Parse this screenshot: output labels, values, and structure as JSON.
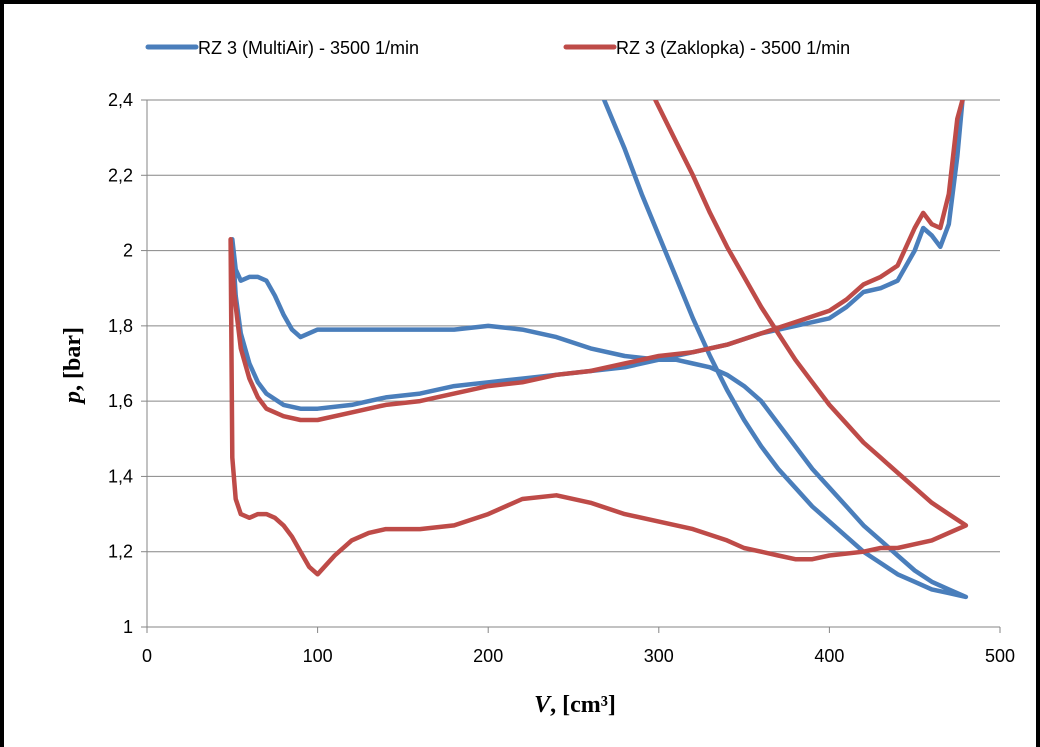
{
  "chart_data": {
    "type": "line",
    "xlabel": "V, [cm³]",
    "ylabel": "p, [bar]",
    "xlim": [
      0,
      500
    ],
    "ylim": [
      1,
      2.4
    ],
    "x_ticks": [
      "0",
      "100",
      "200",
      "300",
      "400",
      "500"
    ],
    "y_ticks": [
      "1",
      "1,2",
      "1,4",
      "1,6",
      "1,8",
      "2",
      "2,2",
      "2,4"
    ],
    "grid": "horizontal",
    "legend_position": "top",
    "series": [
      {
        "name": "RZ 3 (MultiAir) - 3500 1/min",
        "color": "#4a7ebb",
        "points": [
          [
            268,
            2.4
          ],
          [
            280,
            2.27
          ],
          [
            290,
            2.15
          ],
          [
            300,
            2.04
          ],
          [
            310,
            1.93
          ],
          [
            320,
            1.82
          ],
          [
            330,
            1.72
          ],
          [
            340,
            1.63
          ],
          [
            350,
            1.55
          ],
          [
            360,
            1.48
          ],
          [
            370,
            1.42
          ],
          [
            380,
            1.37
          ],
          [
            390,
            1.32
          ],
          [
            400,
            1.28
          ],
          [
            410,
            1.24
          ],
          [
            420,
            1.2
          ],
          [
            430,
            1.17
          ],
          [
            440,
            1.14
          ],
          [
            450,
            1.12
          ],
          [
            460,
            1.1
          ],
          [
            470,
            1.09
          ],
          [
            480,
            1.08
          ],
          [
            470,
            1.1
          ],
          [
            460,
            1.12
          ],
          [
            450,
            1.15
          ],
          [
            440,
            1.19
          ],
          [
            430,
            1.23
          ],
          [
            420,
            1.27
          ],
          [
            410,
            1.32
          ],
          [
            400,
            1.37
          ],
          [
            390,
            1.42
          ],
          [
            380,
            1.48
          ],
          [
            370,
            1.54
          ],
          [
            360,
            1.6
          ],
          [
            350,
            1.64
          ],
          [
            340,
            1.67
          ],
          [
            330,
            1.69
          ],
          [
            320,
            1.7
          ],
          [
            310,
            1.71
          ],
          [
            300,
            1.71
          ],
          [
            280,
            1.72
          ],
          [
            260,
            1.74
          ],
          [
            240,
            1.77
          ],
          [
            220,
            1.79
          ],
          [
            200,
            1.8
          ],
          [
            180,
            1.79
          ],
          [
            160,
            1.79
          ],
          [
            140,
            1.79
          ],
          [
            120,
            1.79
          ],
          [
            100,
            1.79
          ],
          [
            90,
            1.77
          ],
          [
            85,
            1.79
          ],
          [
            80,
            1.83
          ],
          [
            75,
            1.88
          ],
          [
            70,
            1.92
          ],
          [
            65,
            1.93
          ],
          [
            60,
            1.93
          ],
          [
            55,
            1.92
          ],
          [
            52,
            1.95
          ],
          [
            50,
            2.03
          ],
          [
            52,
            1.88
          ],
          [
            55,
            1.78
          ],
          [
            60,
            1.7
          ],
          [
            65,
            1.65
          ],
          [
            70,
            1.62
          ],
          [
            80,
            1.59
          ],
          [
            90,
            1.58
          ],
          [
            100,
            1.58
          ],
          [
            120,
            1.59
          ],
          [
            140,
            1.61
          ],
          [
            160,
            1.62
          ],
          [
            180,
            1.64
          ],
          [
            200,
            1.65
          ],
          [
            220,
            1.66
          ],
          [
            240,
            1.67
          ],
          [
            260,
            1.68
          ],
          [
            280,
            1.69
          ],
          [
            300,
            1.71
          ],
          [
            320,
            1.73
          ],
          [
            340,
            1.75
          ],
          [
            360,
            1.78
          ],
          [
            380,
            1.8
          ],
          [
            400,
            1.82
          ],
          [
            410,
            1.85
          ],
          [
            420,
            1.89
          ],
          [
            430,
            1.9
          ],
          [
            440,
            1.92
          ],
          [
            450,
            2.0
          ],
          [
            455,
            2.06
          ],
          [
            460,
            2.04
          ],
          [
            465,
            2.01
          ],
          [
            470,
            2.07
          ],
          [
            475,
            2.25
          ],
          [
            478,
            2.4
          ]
        ]
      },
      {
        "name": "RZ 3 (Zaklopka) - 3500 1/min",
        "color": "#be4b48",
        "points": [
          [
            298,
            2.4
          ],
          [
            310,
            2.29
          ],
          [
            320,
            2.2
          ],
          [
            330,
            2.1
          ],
          [
            340,
            2.01
          ],
          [
            350,
            1.93
          ],
          [
            360,
            1.85
          ],
          [
            370,
            1.78
          ],
          [
            380,
            1.71
          ],
          [
            390,
            1.65
          ],
          [
            400,
            1.59
          ],
          [
            410,
            1.54
          ],
          [
            420,
            1.49
          ],
          [
            430,
            1.45
          ],
          [
            440,
            1.41
          ],
          [
            450,
            1.37
          ],
          [
            460,
            1.33
          ],
          [
            470,
            1.3
          ],
          [
            480,
            1.27
          ],
          [
            470,
            1.25
          ],
          [
            460,
            1.23
          ],
          [
            450,
            1.22
          ],
          [
            440,
            1.21
          ],
          [
            430,
            1.21
          ],
          [
            420,
            1.2
          ],
          [
            400,
            1.19
          ],
          [
            390,
            1.18
          ],
          [
            380,
            1.18
          ],
          [
            370,
            1.19
          ],
          [
            360,
            1.2
          ],
          [
            350,
            1.21
          ],
          [
            340,
            1.23
          ],
          [
            320,
            1.26
          ],
          [
            300,
            1.28
          ],
          [
            280,
            1.3
          ],
          [
            260,
            1.33
          ],
          [
            240,
            1.35
          ],
          [
            220,
            1.34
          ],
          [
            200,
            1.3
          ],
          [
            180,
            1.27
          ],
          [
            160,
            1.26
          ],
          [
            140,
            1.26
          ],
          [
            130,
            1.25
          ],
          [
            120,
            1.23
          ],
          [
            110,
            1.19
          ],
          [
            100,
            1.14
          ],
          [
            95,
            1.16
          ],
          [
            90,
            1.2
          ],
          [
            85,
            1.24
          ],
          [
            80,
            1.27
          ],
          [
            75,
            1.29
          ],
          [
            70,
            1.3
          ],
          [
            65,
            1.3
          ],
          [
            60,
            1.29
          ],
          [
            55,
            1.3
          ],
          [
            52,
            1.34
          ],
          [
            50,
            1.45
          ],
          [
            49,
            2.03
          ],
          [
            51,
            1.89
          ],
          [
            55,
            1.74
          ],
          [
            60,
            1.66
          ],
          [
            65,
            1.61
          ],
          [
            70,
            1.58
          ],
          [
            80,
            1.56
          ],
          [
            90,
            1.55
          ],
          [
            100,
            1.55
          ],
          [
            120,
            1.57
          ],
          [
            140,
            1.59
          ],
          [
            160,
            1.6
          ],
          [
            180,
            1.62
          ],
          [
            200,
            1.64
          ],
          [
            220,
            1.65
          ],
          [
            240,
            1.67
          ],
          [
            260,
            1.68
          ],
          [
            280,
            1.7
          ],
          [
            300,
            1.72
          ],
          [
            320,
            1.73
          ],
          [
            340,
            1.75
          ],
          [
            360,
            1.78
          ],
          [
            380,
            1.81
          ],
          [
            400,
            1.84
          ],
          [
            410,
            1.87
          ],
          [
            420,
            1.91
          ],
          [
            430,
            1.93
          ],
          [
            440,
            1.96
          ],
          [
            450,
            2.06
          ],
          [
            455,
            2.1
          ],
          [
            460,
            2.07
          ],
          [
            465,
            2.06
          ],
          [
            470,
            2.15
          ],
          [
            475,
            2.35
          ],
          [
            478,
            2.4
          ]
        ]
      }
    ]
  }
}
